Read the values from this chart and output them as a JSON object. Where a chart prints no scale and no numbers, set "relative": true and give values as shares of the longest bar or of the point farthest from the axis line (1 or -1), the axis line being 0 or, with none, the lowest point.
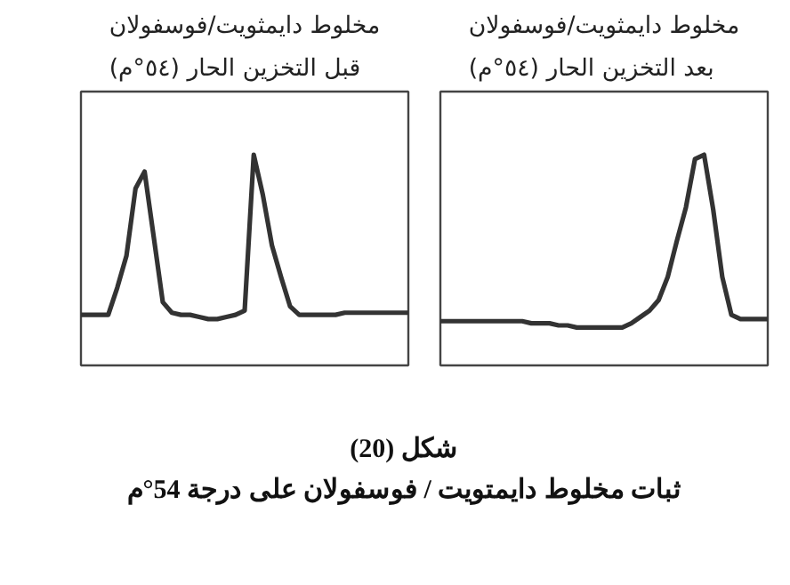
{
  "chart_data": [
    {
      "type": "line",
      "relative": true,
      "title": "مخلوط دايمثويت/فوسفولان\nقبل التخزين الحار (٥٤°م)",
      "color": "#333333",
      "categories": [
        null,
        null,
        null,
        null,
        null,
        null,
        null,
        null,
        null,
        null,
        null,
        null,
        null,
        null,
        null,
        null,
        null,
        null,
        null,
        null,
        null,
        null,
        null,
        null,
        null,
        null,
        null,
        null,
        null,
        null,
        null,
        null,
        null,
        null,
        null,
        null,
        null
      ],
      "values": [
        0.24,
        0.24,
        0.24,
        0.24,
        0.37,
        0.52,
        0.84,
        0.92,
        0.61,
        0.3,
        0.25,
        0.24,
        0.24,
        0.23,
        0.22,
        0.22,
        0.23,
        0.24,
        0.26,
        1.0,
        0.81,
        0.57,
        0.42,
        0.28,
        0.24,
        0.24,
        0.24,
        0.24,
        0.24,
        0.25,
        0.25,
        0.25,
        0.25,
        0.25,
        0.25,
        0.25,
        0.25
      ],
      "annotations": [
        "شكل (20)",
        "ثبات مخلوط دايمتويت / فوسفولان على درجة 54°م"
      ]
    },
    {
      "type": "line",
      "relative": true,
      "title": "مخلوط دايمثويت/فوسفولان\nبعد التخزين الحار (٥٤°م)",
      "color": "#333333",
      "categories": [
        null,
        null,
        null,
        null,
        null,
        null,
        null,
        null,
        null,
        null,
        null,
        null,
        null,
        null,
        null,
        null,
        null,
        null,
        null,
        null,
        null,
        null,
        null,
        null,
        null,
        null,
        null,
        null,
        null,
        null,
        null,
        null,
        null,
        null,
        null,
        null,
        null
      ],
      "values": [
        0.21,
        0.21,
        0.21,
        0.21,
        0.21,
        0.21,
        0.21,
        0.21,
        0.21,
        0.21,
        0.2,
        0.2,
        0.2,
        0.19,
        0.19,
        0.18,
        0.18,
        0.18,
        0.18,
        0.18,
        0.18,
        0.2,
        0.23,
        0.26,
        0.31,
        0.42,
        0.59,
        0.75,
        0.98,
        1.0,
        0.74,
        0.42,
        0.24,
        0.22,
        0.22,
        0.22,
        0.22
      ]
    }
  ]
}
